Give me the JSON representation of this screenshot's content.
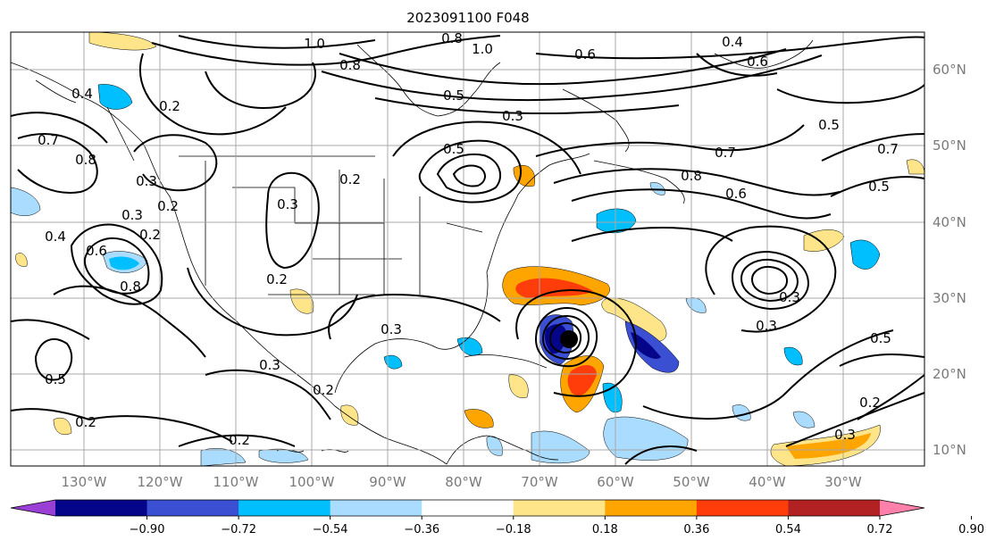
{
  "title": "2023091100 F048",
  "lon_ticks": [
    "130°W",
    "120°W",
    "110°W",
    "100°W",
    "90°W",
    "80°W",
    "70°W",
    "60°W",
    "50°W",
    "40°W",
    "30°W"
  ],
  "lat_ticks": [
    "60°N",
    "50°N",
    "40°N",
    "30°N",
    "20°N",
    "10°N"
  ],
  "colorbar": {
    "ticks": [
      "−0.90",
      "−0.72",
      "−0.54",
      "−0.36",
      "−0.18",
      "0.18",
      "0.36",
      "0.54",
      "0.72",
      "0.90"
    ],
    "colors": [
      "#9a3fd6",
      "#05058a",
      "#3a4fd1",
      "#00bfff",
      "#a9dcff",
      "#ffffff",
      "#ffe58a",
      "#ffa500",
      "#ff3d0a",
      "#b22222",
      "#ff80ab"
    ]
  },
  "contour_labels": [
    "1.0",
    "0.8",
    "1.0",
    "0.4",
    "0.6",
    "0.8",
    "0.6",
    "0.5",
    "0.3",
    "0.5",
    "0.4",
    "0.2",
    "0.7",
    "0.8",
    "0.3",
    "0.7",
    "0.8",
    "0.6",
    "0.5",
    "0.7",
    "0.2",
    "0.5",
    "0.3",
    "0.2",
    "0.3",
    "0.2",
    "0.4",
    "0.6",
    "0.8",
    "0.2",
    "0.3",
    "0.3",
    "0.2",
    "0.5",
    "0.2",
    "0.2",
    "0.3",
    "0.3",
    "0.5",
    "0.2",
    "0.3"
  ]
}
